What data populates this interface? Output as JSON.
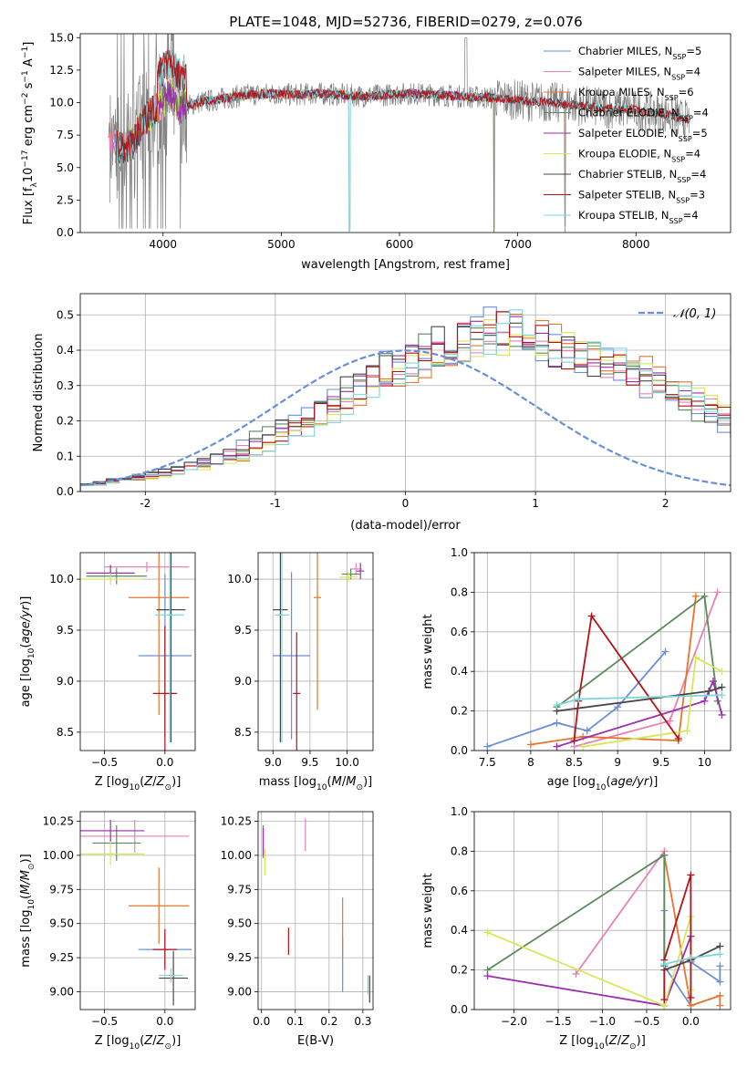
{
  "title": "PLATE=1048, MJD=52736, FIBERID=0279, z=0.076",
  "colors": {
    "Chabrier MILES": "#6a8fd8",
    "Salpeter MILES": "#e882b4",
    "Kroupa MILES": "#e8732a",
    "Chabrier ELODIE": "#5c8a5c",
    "Salpeter ELODIE": "#9b2fae",
    "Kroupa ELODIE": "#d6e858",
    "Chabrier STELIB": "#474747",
    "Salpeter STELIB": "#b51218",
    "Kroupa STELIB": "#7fd6d8",
    "data": "#808080",
    "normal": "#6a8fd8"
  },
  "chart_data": [
    {
      "id": "spectrum",
      "type": "line",
      "xlabel": "wavelength [Angstrom, rest frame]",
      "ylabel": "Flux [f",
      "ylabel_parts": [
        "Flux [f",
        "λ",
        "10",
        "−17",
        " erg cm",
        "−2",
        " s",
        "−1",
        " A",
        "−1",
        "]"
      ],
      "xlim": [
        3300,
        8800
      ],
      "ylim": [
        0,
        15.3
      ],
      "xticks": [
        4000,
        5000,
        6000,
        7000,
        8000
      ],
      "yticks": [
        0.0,
        2.5,
        5.0,
        7.5,
        10.0,
        12.5,
        15.0
      ],
      "grid": false,
      "legend_position": "top-right",
      "legend": [
        {
          "name": "Chabrier MILES, N",
          "sub": "SSP",
          "suffix": "=5",
          "key": "Chabrier MILES"
        },
        {
          "name": "Salpeter MILES, N",
          "sub": "SSP",
          "suffix": "=4",
          "key": "Salpeter MILES"
        },
        {
          "name": "Kroupa MILES, N",
          "sub": "SSP",
          "suffix": "=6",
          "key": "Kroupa MILES"
        },
        {
          "name": "Chabrier ELODIE, N",
          "sub": "SSP",
          "suffix": "=4",
          "key": "Chabrier ELODIE"
        },
        {
          "name": "Salpeter ELODIE, N",
          "sub": "SSP",
          "suffix": "=5",
          "key": "Salpeter ELODIE"
        },
        {
          "name": "Kroupa ELODIE, N",
          "sub": "SSP",
          "suffix": "=4",
          "key": "Kroupa ELODIE"
        },
        {
          "name": "Chabrier STELIB, N",
          "sub": "SSP",
          "suffix": "=4",
          "key": "Chabrier STELIB"
        },
        {
          "name": "Salpeter STELIB, N",
          "sub": "SSP",
          "suffix": "=3",
          "key": "Salpeter STELIB"
        },
        {
          "name": "Kroupa STELIB, N",
          "sub": "SSP",
          "suffix": "=4",
          "key": "Kroupa STELIB"
        }
      ],
      "model_trend": {
        "x": [
          3550,
          3650,
          3750,
          3850,
          3950,
          4050,
          4150,
          4300,
          4500,
          4700,
          4900,
          5100,
          5300,
          5500,
          5700,
          5900,
          6100,
          6300,
          6500,
          6700,
          6900,
          7100,
          7300,
          7500,
          7700,
          7900,
          8100,
          8300,
          8450
        ],
        "y": [
          6.8,
          6.5,
          6.9,
          8.8,
          9.5,
          10.6,
          9.6,
          10.0,
          10.3,
          10.6,
          10.7,
          10.6,
          10.7,
          10.6,
          10.5,
          10.6,
          10.7,
          10.6,
          10.5,
          10.4,
          10.3,
          10.1,
          10.0,
          9.8,
          9.6,
          9.5,
          9.3,
          9.0,
          8.6
        ]
      }
    },
    {
      "id": "residuals",
      "type": "histogram",
      "xlabel": "(data-model)/error",
      "ylabel": "Normed distribution",
      "xlim": [
        -2.5,
        2.5
      ],
      "ylim": [
        0,
        0.56
      ],
      "xticks": [
        -2,
        -1,
        0,
        1,
        2
      ],
      "yticks": [
        0.0,
        0.1,
        0.2,
        0.3,
        0.4,
        0.5
      ],
      "grid": true,
      "legend_position": "top-right",
      "legend": [
        "𝒩(0, 1)"
      ],
      "bin_width": 0.1,
      "bin_start": -2.5,
      "base_density": [
        0.02,
        0.025,
        0.03,
        0.035,
        0.04,
        0.045,
        0.05,
        0.06,
        0.07,
        0.08,
        0.09,
        0.1,
        0.115,
        0.13,
        0.15,
        0.165,
        0.18,
        0.2,
        0.22,
        0.24,
        0.27,
        0.29,
        0.31,
        0.33,
        0.35,
        0.37,
        0.38,
        0.4,
        0.41,
        0.42,
        0.43,
        0.44,
        0.46,
        0.45,
        0.43,
        0.42,
        0.41,
        0.4,
        0.39,
        0.38,
        0.37,
        0.36,
        0.34,
        0.32,
        0.3,
        0.29,
        0.27,
        0.25,
        0.23,
        0.21,
        0.19,
        0.17,
        0.15,
        0.14,
        0.12,
        0.11,
        0.1,
        0.09,
        0.08,
        0.07,
        0.06,
        0.05,
        0.045,
        0.04,
        0.035,
        0.03,
        0.028,
        0.025,
        0.022,
        0.02
      ]
    },
    {
      "id": "age-vs-Z",
      "type": "scatter",
      "xlabel": "Z [log10(Z/Z⊙)]",
      "ylabel": "age  [log10(age/yr)]",
      "xlim": [
        -0.7,
        0.25
      ],
      "ylim": [
        8.32,
        10.26
      ],
      "xticks": [
        -0.5,
        0.0
      ],
      "xticklabels": [
        "−0.5",
        "0.0"
      ],
      "yticks": [
        8.5,
        9.0,
        9.5,
        10.0
      ],
      "grid": true,
      "points": [
        {
          "key": "Chabrier MILES",
          "x": 0.0,
          "y": 9.25,
          "xerr": 0.22,
          "yerr": 0.8
        },
        {
          "key": "Salpeter MILES",
          "x": -0.15,
          "y": 10.12,
          "xerr": 0.35,
          "yerr": 0.05
        },
        {
          "key": "Kroupa MILES",
          "x": -0.05,
          "y": 9.82,
          "xerr": 0.25,
          "yerr": 1.15
        },
        {
          "key": "Chabrier ELODIE",
          "x": -0.4,
          "y": 10.03,
          "xerr": 0.25,
          "yerr": 0.08
        },
        {
          "key": "Salpeter ELODIE",
          "x": -0.45,
          "y": 10.06,
          "xerr": 0.2,
          "yerr": 0.08
        },
        {
          "key": "Kroupa ELODIE",
          "x": -0.45,
          "y": 10.0,
          "xerr": 0.25,
          "yerr": 0.06
        },
        {
          "key": "Chabrier STELIB",
          "x": 0.05,
          "y": 9.7,
          "xerr": 0.12,
          "yerr": 1.3
        },
        {
          "key": "Salpeter STELIB",
          "x": 0.0,
          "y": 8.88,
          "xerr": 0.1,
          "yerr": 0.66
        },
        {
          "key": "Kroupa STELIB",
          "x": 0.04,
          "y": 9.65,
          "xerr": 0.12,
          "yerr": 1.25
        }
      ]
    },
    {
      "id": "age-vs-mass",
      "type": "scatter",
      "xlabel": "mass [log10(M/M⊙)]",
      "xlim": [
        8.8,
        10.35
      ],
      "ylim": [
        8.32,
        10.26
      ],
      "xticks": [
        9.0,
        9.5,
        10.0
      ],
      "xticklabels": [
        "9.0",
        "9.5",
        "10.0"
      ],
      "yticks": [
        8.5,
        9.0,
        9.5,
        10.0
      ],
      "grid": true,
      "points": [
        {
          "key": "Chabrier MILES",
          "x": 9.25,
          "y": 9.25,
          "xerr": 0.25,
          "yerr": 0.82
        },
        {
          "key": "Salpeter MILES",
          "x": 10.12,
          "y": 10.1,
          "xerr": 0.08,
          "yerr": 0.06
        },
        {
          "key": "Kroupa MILES",
          "x": 9.6,
          "y": 9.82,
          "xerr": 0.05,
          "yerr": 1.1
        },
        {
          "key": "Chabrier ELODIE",
          "x": 10.05,
          "y": 10.05,
          "xerr": 0.12,
          "yerr": 0.05
        },
        {
          "key": "Salpeter ELODIE",
          "x": 10.18,
          "y": 10.08,
          "xerr": 0.05,
          "yerr": 0.08
        },
        {
          "key": "Kroupa ELODIE",
          "x": 10.02,
          "y": 10.02,
          "xerr": 0.12,
          "yerr": 0.05
        },
        {
          "key": "Chabrier STELIB",
          "x": 9.1,
          "y": 9.7,
          "xerr": 0.1,
          "yerr": 1.3
        },
        {
          "key": "Salpeter STELIB",
          "x": 9.32,
          "y": 8.88,
          "xerr": 0.05,
          "yerr": 0.6
        },
        {
          "key": "Kroupa STELIB",
          "x": 9.12,
          "y": 9.65,
          "xerr": 0.1,
          "yerr": 1.25
        }
      ]
    },
    {
      "id": "mass-weight-vs-age",
      "type": "line",
      "xlabel": "age  [log10(age/yr)]",
      "ylabel": "mass weight",
      "xlim": [
        7.35,
        10.3
      ],
      "ylim": [
        0,
        1.0
      ],
      "xticks": [
        7.5,
        8.0,
        8.5,
        9.0,
        9.5,
        10.0
      ],
      "yticks": [
        0.0,
        0.2,
        0.4,
        0.6,
        0.8,
        1.0
      ],
      "grid": true,
      "series": [
        {
          "key": "Chabrier MILES",
          "x": [
            7.5,
            8.3,
            8.65,
            9.0,
            9.55
          ],
          "y": [
            0.02,
            0.14,
            0.1,
            0.22,
            0.5
          ]
        },
        {
          "key": "Salpeter MILES",
          "x": [
            8.5,
            9.6,
            10.15
          ],
          "y": [
            0.02,
            0.15,
            0.8
          ]
        },
        {
          "key": "Kroupa MILES",
          "x": [
            8.0,
            8.6,
            9.7,
            9.9
          ],
          "y": [
            0.03,
            0.07,
            0.05,
            0.78
          ]
        },
        {
          "key": "Chabrier ELODIE",
          "x": [
            8.3,
            10.0,
            10.15
          ],
          "y": [
            0.22,
            0.78,
            0.25
          ]
        },
        {
          "key": "Salpeter ELODIE",
          "x": [
            8.3,
            10.0,
            10.1,
            10.2
          ],
          "y": [
            0.02,
            0.25,
            0.35,
            0.18
          ]
        },
        {
          "key": "Kroupa ELODIE",
          "x": [
            8.6,
            9.8,
            9.9,
            10.2
          ],
          "y": [
            0.02,
            0.1,
            0.47,
            0.4
          ]
        },
        {
          "key": "Chabrier STELIB",
          "x": [
            8.3,
            10.05,
            10.2
          ],
          "y": [
            0.2,
            0.3,
            0.32
          ]
        },
        {
          "key": "Salpeter STELIB",
          "x": [
            8.5,
            8.55,
            8.7,
            9.7
          ],
          "y": [
            0.05,
            0.25,
            0.68,
            0.06
          ]
        },
        {
          "key": "Kroupa STELIB",
          "x": [
            8.3,
            8.55,
            10.2
          ],
          "y": [
            0.23,
            0.26,
            0.28
          ]
        }
      ]
    },
    {
      "id": "mass-vs-Z",
      "type": "scatter",
      "xlabel": "Z [log10(Z/Z⊙)]",
      "ylabel": "mass [log10(M/M⊙)]",
      "xlim": [
        -0.7,
        0.25
      ],
      "ylim": [
        8.87,
        10.32
      ],
      "xticks": [
        -0.5,
        0.0
      ],
      "xticklabels": [
        "−0.5",
        "0.0"
      ],
      "yticks": [
        9.0,
        9.25,
        9.5,
        9.75,
        10.0,
        10.25
      ],
      "grid": true,
      "points": [
        {
          "key": "Chabrier MILES",
          "x": 0.0,
          "y": 9.31,
          "xerr": 0.22,
          "yerr": 0.12
        },
        {
          "key": "Salpeter MILES",
          "x": -0.25,
          "y": 10.14,
          "xerr": 0.45,
          "yerr": 0.12
        },
        {
          "key": "Kroupa MILES",
          "x": -0.05,
          "y": 9.63,
          "xerr": 0.25,
          "yerr": 0.28
        },
        {
          "key": "Chabrier ELODIE",
          "x": -0.4,
          "y": 10.09,
          "xerr": 0.2,
          "yerr": 0.13
        },
        {
          "key": "Salpeter ELODIE",
          "x": -0.45,
          "y": 10.18,
          "xerr": 0.28,
          "yerr": 0.08
        },
        {
          "key": "Kroupa ELODIE",
          "x": -0.45,
          "y": 10.01,
          "xerr": 0.28,
          "yerr": 0.08
        },
        {
          "key": "Chabrier STELIB",
          "x": 0.07,
          "y": 9.1,
          "xerr": 0.12,
          "yerr": 0.2
        },
        {
          "key": "Salpeter STELIB",
          "x": 0.0,
          "y": 9.31,
          "xerr": 0.1,
          "yerr": 0.15
        },
        {
          "key": "Kroupa STELIB",
          "x": 0.05,
          "y": 9.12,
          "xerr": 0.1,
          "yerr": 0.05
        }
      ]
    },
    {
      "id": "mass-vs-EBV",
      "type": "scatter",
      "xlabel": "E(B-V)",
      "xlim": [
        -0.01,
        0.33
      ],
      "ylim": [
        8.87,
        10.32
      ],
      "xticks": [
        0.0,
        0.1,
        0.2,
        0.3
      ],
      "xticklabels": [
        "0.0",
        "0.1",
        "0.2",
        "0.3"
      ],
      "yticks": [
        9.0,
        9.25,
        9.5,
        9.75,
        10.0,
        10.25
      ],
      "grid": true,
      "points": [
        {
          "key": "Chabrier MILES",
          "x": 0.24,
          "y": 9.2,
          "xerr": 0,
          "yerr": 0.2
        },
        {
          "key": "Salpeter MILES",
          "x": 0.13,
          "y": 10.15,
          "xerr": 0,
          "yerr": 0.12
        },
        {
          "key": "Kroupa MILES",
          "x": 0.24,
          "y": 9.47,
          "xerr": 0,
          "yerr": 0.22
        },
        {
          "key": "Chabrier ELODIE",
          "x": 0.005,
          "y": 10.1,
          "xerr": 0,
          "yerr": 0.12
        },
        {
          "key": "Salpeter ELODIE",
          "x": 0.005,
          "y": 10.1,
          "xerr": 0,
          "yerr": 0.1
        },
        {
          "key": "Kroupa ELODIE",
          "x": 0.01,
          "y": 9.95,
          "xerr": 0,
          "yerr": 0.1
        },
        {
          "key": "Chabrier STELIB",
          "x": 0.32,
          "y": 9.02,
          "xerr": 0,
          "yerr": 0.1
        },
        {
          "key": "Salpeter STELIB",
          "x": 0.08,
          "y": 9.37,
          "xerr": 0,
          "yerr": 0.1
        },
        {
          "key": "Kroupa STELIB",
          "x": 0.315,
          "y": 9.05,
          "xerr": 0,
          "yerr": 0.07
        }
      ]
    },
    {
      "id": "mass-weight-vs-Z",
      "type": "line",
      "xlabel": "Z [log10(Z/Z⊙)]",
      "ylabel": "mass weight",
      "xlim": [
        -2.45,
        0.45
      ],
      "ylim": [
        0,
        1.0
      ],
      "xticks": [
        -2.0,
        -1.5,
        -1.0,
        -0.5,
        0.0
      ],
      "xticklabels": [
        "−2.0",
        "−1.5",
        "−1.0",
        "−0.5",
        "0.0"
      ],
      "yticks": [
        0.0,
        0.2,
        0.4,
        0.6,
        0.8,
        1.0
      ],
      "grid": true,
      "series": [
        {
          "key": "Chabrier MILES",
          "x": [
            -0.3,
            -0.3,
            0.0,
            0.0,
            0.33,
            0.33
          ],
          "y": [
            0.5,
            0.22,
            0.02,
            0.24,
            0.14,
            0.22
          ]
        },
        {
          "key": "Salpeter MILES",
          "x": [
            -1.3,
            -0.3,
            -0.3
          ],
          "y": [
            0.18,
            0.8,
            0.02
          ]
        },
        {
          "key": "Kroupa MILES",
          "x": [
            -0.3,
            0.0,
            0.33,
            0.33
          ],
          "y": [
            0.78,
            0.02,
            0.07,
            0.02
          ]
        },
        {
          "key": "Chabrier ELODIE",
          "x": [
            -2.3,
            -0.3,
            -0.3
          ],
          "y": [
            0.2,
            0.78,
            0.22
          ]
        },
        {
          "key": "Salpeter ELODIE",
          "x": [
            -2.3,
            -0.3,
            0.0,
            0.0
          ],
          "y": [
            0.17,
            0.02,
            0.37,
            0.25
          ]
        },
        {
          "key": "Kroupa ELODIE",
          "x": [
            -2.3,
            -0.3,
            0.0,
            0.0
          ],
          "y": [
            0.39,
            0.02,
            0.47,
            0.1
          ]
        },
        {
          "key": "Chabrier STELIB",
          "x": [
            -0.3,
            0.0,
            0.33
          ],
          "y": [
            0.2,
            0.25,
            0.32
          ]
        },
        {
          "key": "Salpeter STELIB",
          "x": [
            -0.3,
            -0.3,
            0.0,
            0.0
          ],
          "y": [
            0.05,
            0.25,
            0.68,
            0.06
          ]
        },
        {
          "key": "Kroupa STELIB",
          "x": [
            -0.3,
            0.0,
            0.33
          ],
          "y": [
            0.23,
            0.26,
            0.28
          ]
        }
      ]
    }
  ]
}
